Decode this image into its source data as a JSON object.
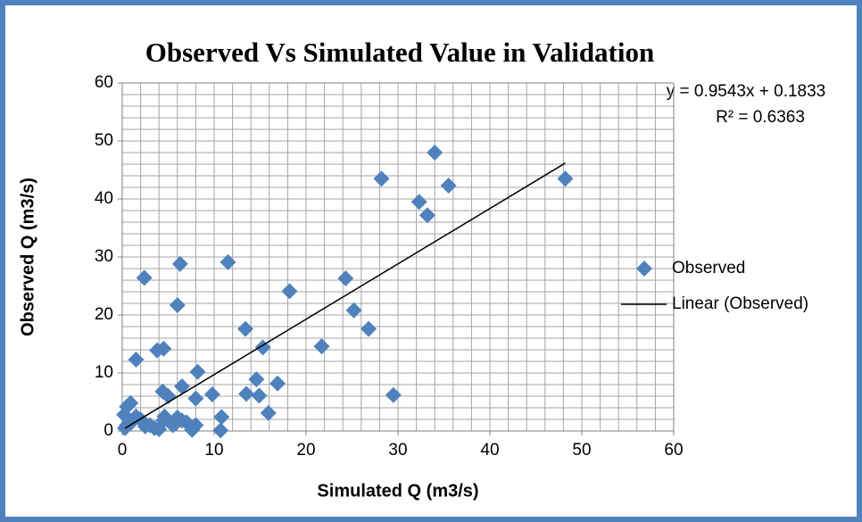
{
  "chart_data": {
    "type": "scatter",
    "title": "Observed Vs Simulated Value in Validation",
    "xlabel": "Simulated Q (m3/s)",
    "ylabel": "Observed Q (m3/s)",
    "xlim": [
      0,
      60
    ],
    "ylim": [
      0,
      60
    ],
    "xticks": [
      0,
      10,
      20,
      30,
      40,
      50,
      60
    ],
    "yticks": [
      0,
      10,
      20,
      30,
      40,
      50,
      60
    ],
    "grid": true,
    "minor_grid": 2,
    "legend": "right",
    "series": [
      {
        "name": "Observed",
        "color": "#4f81bd",
        "x": [
          34.0,
          28.2,
          48.2,
          35.5,
          32.3,
          33.2,
          11.5,
          6.3,
          2.4,
          24.3,
          18.2,
          6.0,
          25.2,
          13.4,
          26.8,
          21.7,
          15.3,
          4.5,
          3.8,
          1.5,
          8.2,
          14.6,
          16.9,
          6.5,
          4.4,
          13.5,
          9.8,
          14.9,
          29.5,
          5.0,
          8.0,
          0.9,
          0.5,
          15.9,
          10.8,
          6.0,
          4.6,
          7.0,
          2.0,
          3.0,
          1.0,
          0.5,
          0.3,
          4.0,
          7.6,
          10.7,
          5.5,
          2.5,
          3.5,
          4.5,
          6.5,
          1.5,
          0.2,
          5.8,
          8.0
        ],
        "values": [
          48.0,
          43.5,
          43.5,
          42.3,
          39.5,
          37.2,
          29.1,
          28.8,
          26.4,
          26.3,
          24.1,
          21.7,
          20.8,
          17.6,
          17.6,
          14.6,
          14.4,
          14.2,
          13.9,
          12.3,
          10.2,
          8.9,
          8.2,
          7.7,
          6.8,
          6.4,
          6.3,
          6.1,
          6.2,
          6.0,
          5.6,
          4.8,
          4.2,
          3.1,
          2.4,
          2.3,
          2.5,
          1.5,
          2.0,
          1.0,
          1.5,
          1.0,
          0.5,
          0.3,
          0.2,
          0.1,
          1.0,
          0.8,
          0.5,
          1.8,
          1.8,
          2.5,
          2.8,
          1.3,
          1.0
        ]
      }
    ],
    "trendline": {
      "name": "Linear (Observed)",
      "color": "#000000",
      "slope": 0.9543,
      "intercept": 0.1833,
      "x_range": [
        0.3,
        48.2
      ],
      "equation_label": "y = 0.9543x + 0.1833",
      "r2_label": "R² = 0.6363"
    }
  }
}
